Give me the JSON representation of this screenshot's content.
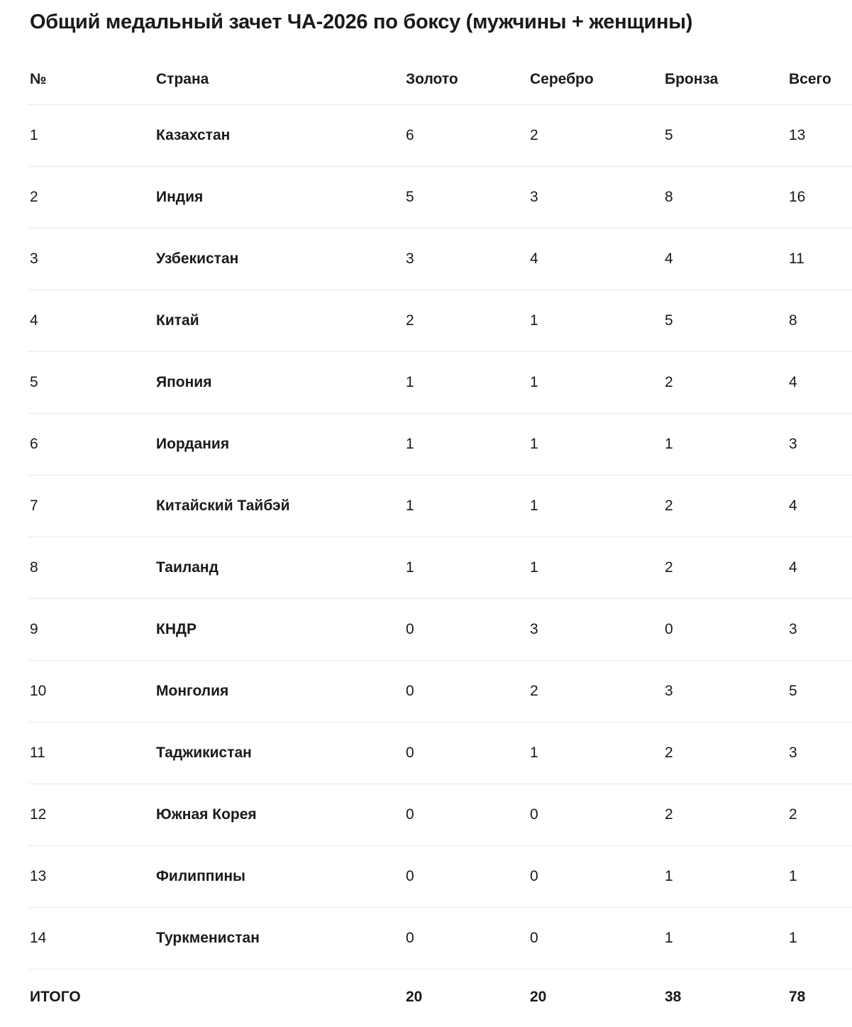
{
  "title": "Общий медальный зачет ЧА-2026 по боксу (мужчины + женщины)",
  "colors": {
    "text": "#1a1a1a",
    "divider": "#e8e8e8",
    "background": "#ffffff"
  },
  "table": {
    "columns": [
      "№",
      "Страна",
      "Золото",
      "Серебро",
      "Бронза",
      "Всего"
    ],
    "rows": [
      {
        "rank": "1",
        "country": "Казахстан",
        "gold": "6",
        "silver": "2",
        "bronze": "5",
        "total": "13"
      },
      {
        "rank": "2",
        "country": "Индия",
        "gold": "5",
        "silver": "3",
        "bronze": "8",
        "total": "16"
      },
      {
        "rank": "3",
        "country": "Узбекистан",
        "gold": "3",
        "silver": "4",
        "bronze": "4",
        "total": "11"
      },
      {
        "rank": "4",
        "country": "Китай",
        "gold": "2",
        "silver": "1",
        "bronze": "5",
        "total": "8"
      },
      {
        "rank": "5",
        "country": "Япония",
        "gold": "1",
        "silver": "1",
        "bronze": "2",
        "total": "4"
      },
      {
        "rank": "6",
        "country": "Иордания",
        "gold": "1",
        "silver": "1",
        "bronze": "1",
        "total": "3"
      },
      {
        "rank": "7",
        "country": "Китайский Тайбэй",
        "gold": "1",
        "silver": "1",
        "bronze": "2",
        "total": "4"
      },
      {
        "rank": "8",
        "country": "Таиланд",
        "gold": "1",
        "silver": "1",
        "bronze": "2",
        "total": "4"
      },
      {
        "rank": "9",
        "country": "КНДР",
        "gold": "0",
        "silver": "3",
        "bronze": "0",
        "total": "3"
      },
      {
        "rank": "10",
        "country": "Монголия",
        "gold": "0",
        "silver": "2",
        "bronze": "3",
        "total": "5"
      },
      {
        "rank": "11",
        "country": "Таджикистан",
        "gold": "0",
        "silver": "1",
        "bronze": "2",
        "total": "3"
      },
      {
        "rank": "12",
        "country": "Южная Корея",
        "gold": "0",
        "silver": "0",
        "bronze": "2",
        "total": "2"
      },
      {
        "rank": "13",
        "country": "Филиппины",
        "gold": "0",
        "silver": "0",
        "bronze": "1",
        "total": "1"
      },
      {
        "rank": "14",
        "country": "Туркменистан",
        "gold": "0",
        "silver": "0",
        "bronze": "1",
        "total": "1"
      }
    ],
    "total_row": {
      "label": "ИТОГО",
      "country": "",
      "gold": "20",
      "silver": "20",
      "bronze": "38",
      "total": "78"
    }
  }
}
